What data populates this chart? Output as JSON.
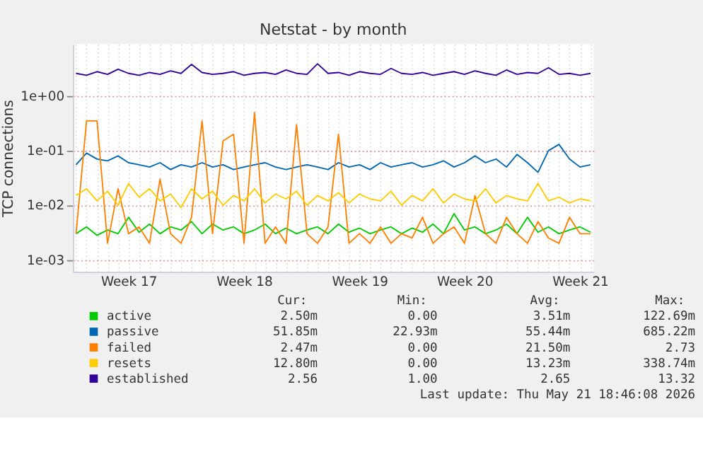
{
  "chart_data": {
    "type": "line",
    "title": "Netstat - by month",
    "ylabel": "TCP connections",
    "categories": [
      null,
      null,
      null,
      null,
      null,
      "Week 17",
      null,
      null,
      null,
      null,
      null,
      null,
      null,
      null,
      null,
      null,
      "Week 18",
      null,
      null,
      null,
      null,
      null,
      null,
      null,
      null,
      null,
      null,
      "Week 19",
      null,
      null,
      null,
      null,
      null,
      null,
      null,
      null,
      null,
      "Week 20",
      null,
      null,
      null,
      null,
      null,
      null,
      null,
      null,
      null,
      null,
      "Week 21",
      null
    ],
    "log": true,
    "ylim": [
      0.0006,
      9
    ],
    "yticks": [
      {
        "value": 0.001,
        "label": "1e-03"
      },
      {
        "value": 0.01,
        "label": "1e-02"
      },
      {
        "value": 0.1,
        "label": "1e-01"
      },
      {
        "value": 1,
        "label": "1e+00"
      }
    ],
    "grid": true,
    "legend": "bottom",
    "series": [
      {
        "name": "active",
        "color": "#00cc00",
        "values": [
          0.003,
          0.004,
          0.0028,
          0.0035,
          0.003,
          0.006,
          0.0032,
          0.0045,
          0.003,
          0.004,
          0.0035,
          0.005,
          0.003,
          0.0045,
          0.0035,
          0.004,
          0.003,
          0.0035,
          0.0045,
          0.003,
          0.0038,
          0.003,
          0.0035,
          0.004,
          0.003,
          0.0045,
          0.0032,
          0.0038,
          0.003,
          0.0035,
          0.004,
          0.003,
          0.0038,
          0.0032,
          0.0045,
          0.003,
          0.007,
          0.0035,
          0.004,
          0.003,
          0.0035,
          0.0045,
          0.003,
          0.006,
          0.0032,
          0.004,
          0.003,
          0.0035,
          0.004,
          0.0032
        ]
      },
      {
        "name": "passive",
        "color": "#0066b3",
        "values": [
          0.055,
          0.09,
          0.07,
          0.065,
          0.08,
          0.06,
          0.055,
          0.05,
          0.06,
          0.045,
          0.055,
          0.05,
          0.06,
          0.05,
          0.055,
          0.045,
          0.05,
          0.055,
          0.06,
          0.05,
          0.045,
          0.05,
          0.055,
          0.05,
          0.045,
          0.06,
          0.05,
          0.055,
          0.045,
          0.06,
          0.05,
          0.055,
          0.06,
          0.05,
          0.055,
          0.065,
          0.05,
          0.06,
          0.08,
          0.06,
          0.07,
          0.05,
          0.085,
          0.06,
          0.04,
          0.1,
          0.13,
          0.07,
          0.05,
          0.055
        ]
      },
      {
        "name": "failed",
        "color": "#ff8000",
        "values": [
          0.003,
          0.35,
          0.35,
          0.002,
          0.02,
          0.003,
          0.004,
          0.002,
          0.03,
          0.003,
          0.002,
          0.006,
          0.35,
          0.003,
          0.15,
          0.2,
          0.002,
          0.5,
          0.002,
          0.004,
          0.002,
          0.3,
          0.003,
          0.002,
          0.004,
          0.2,
          0.002,
          0.003,
          0.002,
          0.004,
          0.002,
          0.003,
          0.0025,
          0.006,
          0.002,
          0.003,
          0.004,
          0.002,
          0.015,
          0.003,
          0.002,
          0.006,
          0.003,
          0.002,
          0.005,
          0.0025,
          0.002,
          0.006,
          0.003,
          0.003
        ]
      },
      {
        "name": "resets",
        "color": "#ffcc00",
        "values": [
          0.015,
          0.02,
          0.012,
          0.018,
          0.01,
          0.025,
          0.014,
          0.02,
          0.012,
          0.016,
          0.009,
          0.02,
          0.013,
          0.018,
          0.01,
          0.015,
          0.012,
          0.02,
          0.011,
          0.016,
          0.013,
          0.018,
          0.01,
          0.015,
          0.012,
          0.017,
          0.011,
          0.016,
          0.013,
          0.012,
          0.018,
          0.01,
          0.015,
          0.012,
          0.02,
          0.011,
          0.016,
          0.013,
          0.012,
          0.02,
          0.011,
          0.015,
          0.013,
          0.012,
          0.025,
          0.012,
          0.014,
          0.011,
          0.013,
          0.012
        ]
      },
      {
        "name": "established",
        "color": "#330099",
        "values": [
          2.6,
          2.4,
          2.8,
          2.5,
          3.1,
          2.6,
          2.4,
          2.7,
          2.5,
          2.9,
          2.6,
          3.8,
          2.7,
          2.5,
          2.6,
          2.8,
          2.4,
          2.6,
          2.7,
          2.5,
          3.0,
          2.6,
          2.5,
          3.9,
          2.6,
          2.7,
          2.4,
          2.8,
          2.6,
          2.5,
          3.2,
          2.6,
          2.5,
          2.7,
          2.4,
          2.6,
          2.8,
          2.5,
          2.9,
          2.6,
          2.4,
          3.0,
          2.5,
          2.7,
          2.6,
          3.3,
          2.5,
          2.6,
          2.4,
          2.6
        ]
      }
    ],
    "annotations": [
      "Cur:",
      "Min:",
      "Avg:",
      "Max:",
      "2.50m",
      "0.00",
      "3.51m",
      "122.69m",
      "51.85m",
      "22.93m",
      "55.44m",
      "685.22m",
      "2.47m",
      "0.00",
      "21.50m",
      "2.73",
      "12.80m",
      "0.00",
      "13.23m",
      "338.74m",
      "2.56",
      "1.00",
      "2.65",
      "13.32",
      "Last update: Thu May 21 18:46:08 2026"
    ]
  }
}
